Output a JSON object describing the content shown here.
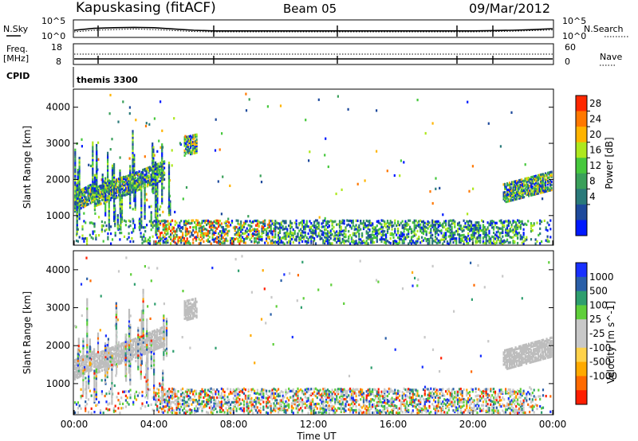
{
  "header": {
    "station": "Kapuskasing (fitACF)",
    "beam": "Beam 05",
    "date": "09/Mar/2012"
  },
  "top_panels": {
    "nsky_label": "N.Sky",
    "nsearch_label": "N.Search",
    "nsky_ticks": [
      "10^5",
      "10^0"
    ],
    "nsearch_ticks": [
      "10^5",
      "10^0"
    ],
    "freq_label": "Freq.",
    "freq_unit": "[MHz]",
    "freq_ticks": [
      "18",
      "8"
    ],
    "nave_label": "Nave",
    "nave_ticks": [
      "60",
      "0"
    ],
    "cpid_label": "CPID",
    "cpid_value": "themis 3300"
  },
  "colors": {
    "power": [
      "#0019ff",
      "#1e4a9c",
      "#2a7a7a",
      "#3aa05a",
      "#46c83c",
      "#aee81e",
      "#ffb400",
      "#ff7800",
      "#ff2800"
    ],
    "velocity": [
      "#ff1e00",
      "#ff6a00",
      "#ffaa00",
      "#ffd24a",
      "#c8c8c8",
      "#c8c8c8",
      "#5fcf3a",
      "#2e9e6e",
      "#2a5fa8",
      "#1830ff"
    ],
    "ground_scatter": "#bdbdbd"
  },
  "chart_data": [
    {
      "type": "line",
      "name": "N.Sky / N.Search",
      "x": [
        0,
        1,
        2,
        3,
        4,
        5,
        6,
        7,
        8,
        9,
        10,
        11,
        12,
        13,
        14,
        15,
        16,
        17,
        18,
        19,
        20,
        21,
        22,
        23,
        24
      ],
      "series": [
        {
          "name": "N.Sky",
          "values": [
            2.0,
            2.6,
            2.8,
            2.9,
            2.8,
            2.4,
            2.0,
            1.8,
            1.8,
            1.8,
            1.8,
            1.8,
            1.8,
            1.8,
            1.8,
            1.8,
            1.8,
            1.8,
            1.8,
            1.8,
            1.8,
            1.9,
            2.0,
            2.2,
            2.5
          ]
        },
        {
          "name": "N.Search",
          "values": [
            1.5,
            2.0,
            2.2,
            2.4,
            2.2,
            1.9,
            1.6,
            1.5,
            1.5,
            1.5,
            1.5,
            1.5,
            1.5,
            1.5,
            1.5,
            1.5,
            1.5,
            1.5,
            1.5,
            1.5,
            1.5,
            1.6,
            1.7,
            1.9,
            2.1
          ]
        }
      ],
      "ylim": [
        0,
        5
      ]
    },
    {
      "type": "line",
      "name": "Freq / Nave",
      "x": [
        0,
        24
      ],
      "series": [
        {
          "name": "Freq. [MHz]",
          "values": [
            10.5,
            10.5
          ]
        },
        {
          "name": "Nave",
          "values": [
            40,
            40
          ]
        }
      ],
      "ylim_freq": [
        8,
        18
      ],
      "ylim_nave": [
        0,
        60
      ]
    },
    {
      "type": "heatmap",
      "name": "Power",
      "ylabel": "Slant Range [km]",
      "colorbar_label": "Power [dB]",
      "colorbar_ticks": [
        "28",
        "24",
        "20",
        "16",
        "12",
        "8",
        "4"
      ],
      "ylim": [
        180,
        4500
      ],
      "y_ticks": [
        "4000",
        "3000",
        "2000",
        "1000"
      ],
      "xlim": [
        0,
        24
      ],
      "regions": [
        {
          "t0": 0.0,
          "t1": 1.0,
          "r0": 1150,
          "r1": 1900
        },
        {
          "t0": 1.0,
          "t1": 2.5,
          "r0": 1300,
          "r1": 2100
        },
        {
          "t0": 2.5,
          "t1": 4.5,
          "r0": 1600,
          "r1": 2700
        },
        {
          "t0": 5.5,
          "t1": 6.1,
          "r0": 2700,
          "r1": 2900
        },
        {
          "t0": 4.0,
          "t1": 22.5,
          "r0": 200,
          "r1": 900
        },
        {
          "t0": 21.5,
          "t1": 24.0,
          "r0": 1400,
          "r1": 2300
        }
      ]
    },
    {
      "type": "heatmap",
      "name": "Velocity",
      "ylabel": "Slant Range [km]",
      "colorbar_label": "Velocity [m s^-1]",
      "colorbar_ticks": [
        "1000",
        "500",
        "100",
        "25",
        "-25",
        "-100",
        "-500",
        "-1000"
      ],
      "xlabel": "Time UT",
      "x_ticks": [
        "00:00",
        "04:00",
        "08:00",
        "12:00",
        "16:00",
        "20:00",
        "00:00"
      ],
      "ylim": [
        180,
        4500
      ],
      "y_ticks": [
        "4000",
        "3000",
        "2000",
        "1000"
      ],
      "xlim": [
        0,
        24
      ]
    }
  ]
}
